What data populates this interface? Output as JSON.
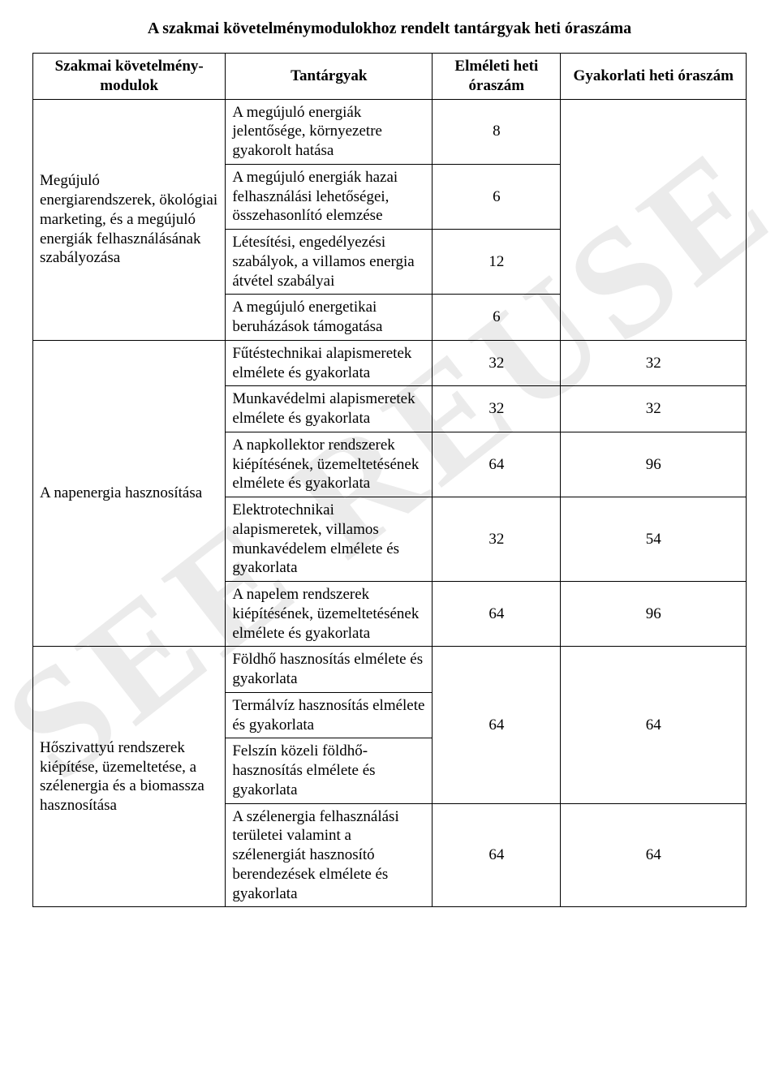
{
  "watermark": "SEE REUSE",
  "title": "A szakmai követelménymodulokhoz rendelt tantárgyak heti óraszáma",
  "headers": {
    "h1": "Szakmai követelmény-modulok",
    "h2": "Tantárgyak",
    "h3": "Elméleti heti óraszám",
    "h4": "Gyakorlati heti óraszám"
  },
  "modules": {
    "m1": "Megújuló energiarendszerek, ökológiai marketing, és a megújuló energiák felhasználásának szabályozása",
    "m2": "A napenergia hasznosítása",
    "m3": "Hőszivattyú rendszerek kiépítése, üzemeltetése, a szélenergia és a biomassza hasznosítása"
  },
  "subjects": {
    "s1": "A megújuló energiák jelentősége, környezetre gyakorolt hatása",
    "s2": "A megújuló energiák hazai felhasználási lehetőségei, összehasonlító elemzése",
    "s3": "Létesítési, engedélyezési szabályok, a villamos energia átvétel szabályai",
    "s4": "A megújuló energetikai beruházások támogatása",
    "s5": "Fűtéstechnikai alapismeretek elmélete és gyakorlata",
    "s6": "Munkavédelmi alapismeretek elmélete és gyakorlata",
    "s7": "A napkollektor rendszerek kiépítésének, üzemeltetésének elmélete és gyakorlata",
    "s8": "Elektrotechnikai alapismeretek, villamos munkavédelem elmélete és gyakorlata",
    "s9": "A napelem rendszerek kiépítésének, üzemeltetésének elmélete és gyakorlata",
    "s10": "Földhő hasznosítás elmélete és gyakorlata",
    "s11": "Termálvíz hasznosítás elmélete és gyakorlata",
    "s12": "Felszín közeli földhő-hasznosítás elmélete és gyakorlata",
    "s13": "A szélenergia felhasználási területei valamint a szélenergiát hasznosító berendezések elmélete és gyakorlata"
  },
  "hours": {
    "r1e": "8",
    "r1g": "",
    "r2e": "6",
    "r2g": "",
    "r3e": "12",
    "r3g": "",
    "r4e": "6",
    "r4g": "",
    "r5e": "32",
    "r5g": "32",
    "r6e": "32",
    "r6g": "32",
    "r7e": "64",
    "r7g": "96",
    "r8e": "32",
    "r8g": "54",
    "r9e": "64",
    "r9g": "96",
    "rAe": "64",
    "rAg": "64",
    "rBe": "64",
    "rBg": "64"
  }
}
